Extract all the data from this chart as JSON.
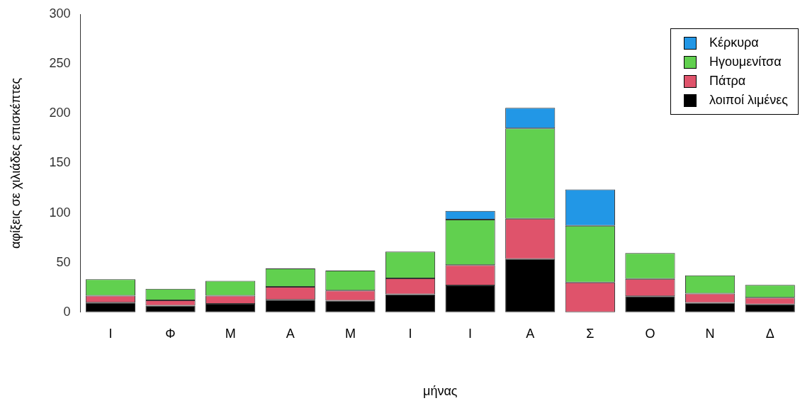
{
  "chart_data": {
    "type": "bar",
    "stacked": true,
    "xlabel": "μήνας",
    "ylabel": "αφίξεις σε χιλιάδες επισκέπτες",
    "categories": [
      "Ι",
      "Φ",
      "Μ",
      "Α",
      "Μ",
      "Ι",
      "Ι",
      "Α",
      "Σ",
      "Ο",
      "Ν",
      "Δ"
    ],
    "series": [
      {
        "name": "λοιποί λιμένες",
        "color": "#000000",
        "values": [
          9.6,
          6.6,
          8.5,
          12.6,
          11.7,
          18,
          27,
          53.5,
          0,
          16,
          9.4,
          7.8
        ]
      },
      {
        "name": "Πάτρα",
        "color": "#df536b",
        "values": [
          7,
          5.3,
          8.2,
          13,
          10,
          16,
          20.5,
          40.7,
          30,
          17.5,
          9.4,
          6.8
        ]
      },
      {
        "name": "Ηγουμενίτσα",
        "color": "#61d04f",
        "values": [
          16.5,
          11.6,
          14.9,
          18.4,
          20.2,
          27,
          45.7,
          90.8,
          57,
          26,
          18.3,
          12.8
        ]
      },
      {
        "name": "Κέρκυρα",
        "color": "#2297e6",
        "values": [
          0,
          0,
          0,
          0,
          0,
          0,
          8.7,
          20.7,
          36.5,
          0,
          0,
          0
        ]
      }
    ],
    "ylim": [
      0,
      300
    ],
    "yticks": [
      0,
      50,
      100,
      150,
      200,
      250,
      300
    ],
    "grid": false,
    "legend": "top right"
  }
}
